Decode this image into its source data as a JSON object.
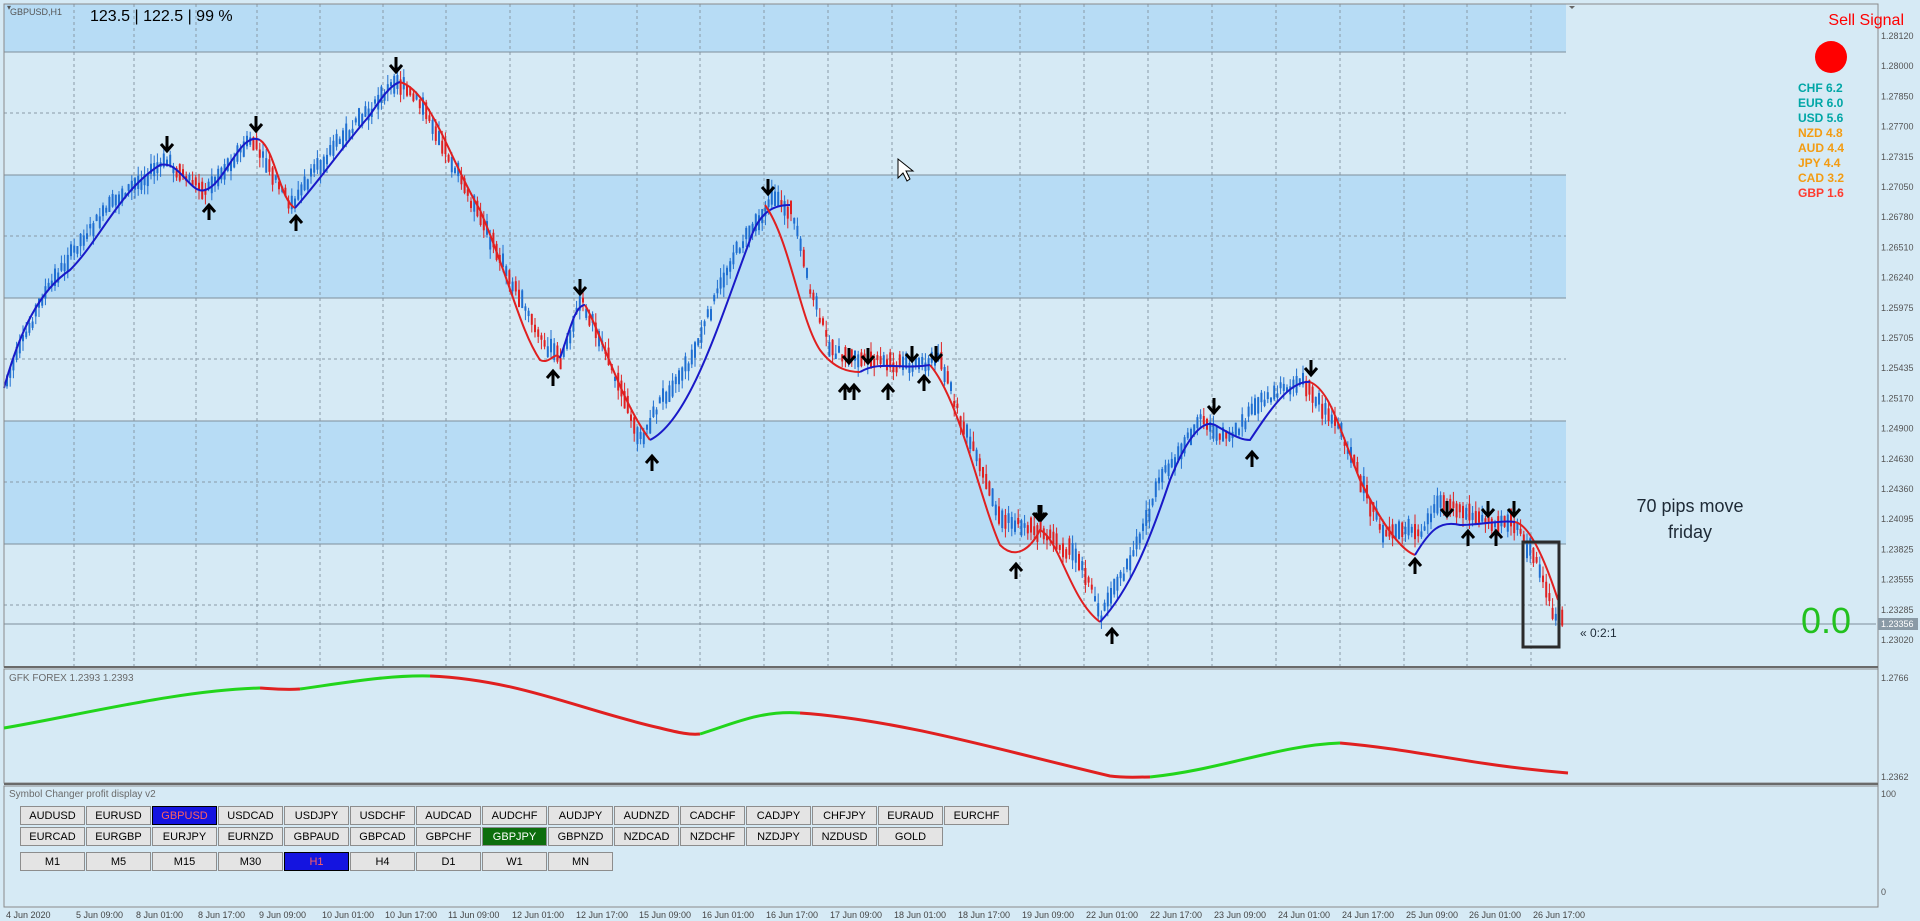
{
  "chart": {
    "title": "GBPUSD,H1",
    "top_readout": "123.5 | 122.5 | 99 %",
    "signal_label": "Sell Signal",
    "signal_color": "#ff0000",
    "annotation_line1": "70 pips move",
    "annotation_line2": "friday",
    "big_value": "0.0",
    "timer": "« 0:2:1",
    "current_price": "1.23356"
  },
  "strength": [
    {
      "label": "CHF 6.2",
      "color": "#00a6a6"
    },
    {
      "label": "EUR 6.0",
      "color": "#00a6a6"
    },
    {
      "label": "USD 5.6",
      "color": "#00a6a6"
    },
    {
      "label": "NZD 4.8",
      "color": "#f39c12"
    },
    {
      "label": "AUD 4.4",
      "color": "#f39c12"
    },
    {
      "label": "JPY 4.4",
      "color": "#f39c12"
    },
    {
      "label": "CAD 3.2",
      "color": "#f39c12"
    },
    {
      "label": "GBP 1.6",
      "color": "#ff3b2f"
    }
  ],
  "price_axis": [
    "1.28120",
    "1.28000",
    "1.27850",
    "1.27700",
    "1.27315",
    "1.27050",
    "1.26780",
    "1.26510",
    "1.26240",
    "1.25975",
    "1.25705",
    "1.25435",
    "1.25170",
    "1.24900",
    "1.24630",
    "1.24360",
    "1.24095",
    "1.23825",
    "1.23555",
    "1.23285",
    "1.23020"
  ],
  "time_axis": [
    "4 Jun 2020",
    "5 Jun 09:00",
    "8 Jun 01:00",
    "8 Jun 17:00",
    "9 Jun 09:00",
    "10 Jun 01:00",
    "10 Jun 17:00",
    "11 Jun 09:00",
    "12 Jun 01:00",
    "12 Jun 17:00",
    "15 Jun 09:00",
    "16 Jun 01:00",
    "16 Jun 17:00",
    "17 Jun 09:00",
    "18 Jun 01:00",
    "18 Jun 17:00",
    "19 Jun 09:00",
    "22 Jun 01:00",
    "22 Jun 17:00",
    "23 Jun 09:00",
    "24 Jun 01:00",
    "24 Jun 17:00",
    "25 Jun 09:00",
    "26 Jun 01:00",
    "26 Jun 17:00"
  ],
  "sub_window": {
    "title": "GFK FOREX 1.2393 1.2393",
    "axis_top": "1.2766",
    "axis_bottom": "1.2362"
  },
  "panel": {
    "title": "Symbol Changer profit display v2",
    "axis_top": "100",
    "axis_bottom": "0",
    "row1": [
      "AUDUSD",
      "EURUSD",
      "GBPUSD",
      "USDCAD",
      "USDJPY",
      "USDCHF",
      "AUDCAD",
      "AUDCHF",
      "AUDJPY",
      "AUDNZD",
      "CADCHF",
      "CADJPY",
      "CHFJPY",
      "EURAUD",
      "EURCHF"
    ],
    "row2": [
      "EURCAD",
      "EURGBP",
      "EURJPY",
      "EURNZD",
      "GBPAUD",
      "GBPCAD",
      "GBPCHF",
      "GBPJPY",
      "GBPNZD",
      "NZDCAD",
      "NZDCHF",
      "NZDJPY",
      "NZDUSD",
      "GOLD"
    ],
    "row3": [
      "M1",
      "M5",
      "M15",
      "M30",
      "H1",
      "H4",
      "D1",
      "W1",
      "MN"
    ],
    "active_symbol": "GBPUSD",
    "highlight_symbol": "GBPJPY",
    "active_timeframe": "H1"
  }
}
